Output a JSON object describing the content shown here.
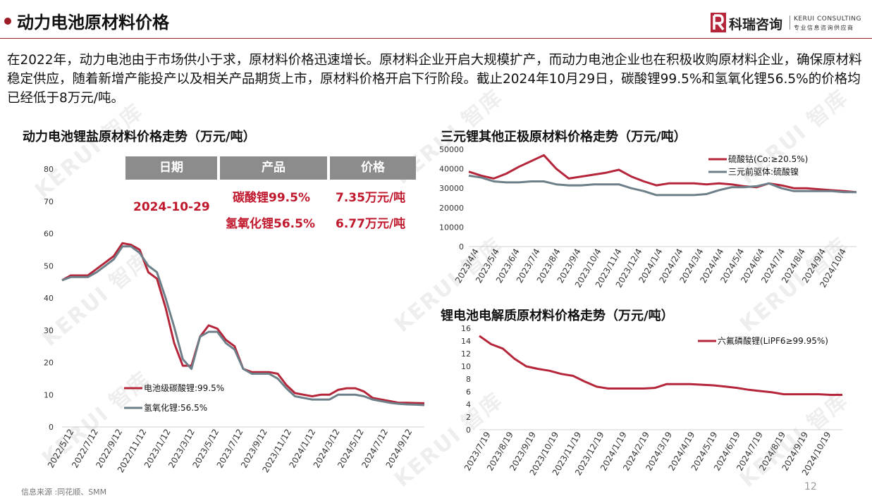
{
  "header": {
    "title": "动力电池原材料价格",
    "logo_cn": "科瑞咨询",
    "logo_en": "KERUI CONSULTING",
    "logo_sub": "专业信息咨询供应商"
  },
  "intro": "在2022年，动力电池由于市场供小于求，原材料价格迅速增长。原材料企业开启大规模扩产，而动力电池企业也在积极收购原材料企业，确保原材料稳定供应，随着新增产能投产以及相关产品期货上市，原材料价格开启下行阶段。截止2024年10月29日，碳酸锂99.5%和氢氧化锂56.5%的价格均已经低于8万元/吨。",
  "table": {
    "headers": [
      "日期",
      "产品",
      "价格"
    ],
    "date": "2024-10-29",
    "rows": [
      {
        "product": "碳酸锂99.5%",
        "price": "7.35万元/吨"
      },
      {
        "product": "氢氧化锂56.5%",
        "price": "6.77万元/吨"
      }
    ]
  },
  "watermark": "KERUI 智库",
  "source": "信息来源 :同花顺、SMM",
  "page_number": "12",
  "chart_data": [
    {
      "type": "line",
      "title": "动力电池锂盐原材料价格走势（万元/吨）",
      "x_ticks": [
        "2022/5/12",
        "2022/7/12",
        "2022/9/12",
        "2022/11/12",
        "2023/1/12",
        "2023/3/12",
        "2023/5/12",
        "2023/7/12",
        "2023/9/12",
        "2023/11/12",
        "2024/1/12",
        "2024/3/12",
        "2024/5/12",
        "2024/7/12",
        "2024/9/12"
      ],
      "ylim": [
        0,
        80
      ],
      "y_ticks": [
        "0",
        "10",
        "20",
        "30",
        "40",
        "50",
        "60",
        "70",
        "80"
      ],
      "legend_position": "bottom-left",
      "series": [
        {
          "name": "电池级碳酸锂:99.5%",
          "color": "#b5263a",
          "values": [
            45.5,
            47,
            47,
            47,
            49,
            51,
            53,
            57,
            56.5,
            55,
            48,
            46,
            37,
            26,
            19,
            19,
            28,
            31.5,
            30.5,
            27,
            25,
            18,
            17,
            17,
            17,
            16.5,
            13,
            10.5,
            10,
            9.5,
            10,
            10,
            11.5,
            12,
            12,
            11,
            9,
            8.5,
            8,
            7.5,
            7.5,
            7.4,
            7.35
          ]
        },
        {
          "name": "氢氧化锂:56.5%",
          "color": "#6d7f88",
          "values": [
            45.5,
            46.5,
            46.5,
            46.5,
            48,
            50,
            52,
            56,
            56,
            54,
            50,
            48,
            40,
            31,
            21,
            18,
            28,
            29.5,
            29.5,
            26,
            24,
            18,
            16.5,
            16.5,
            16.5,
            15,
            12,
            9.5,
            9,
            8.5,
            8.5,
            8.5,
            10,
            10,
            10,
            9.5,
            8.5,
            8,
            7.5,
            7.2,
            7,
            6.9,
            6.77
          ]
        }
      ]
    },
    {
      "type": "line",
      "title": "三元锂其他正极原材料价格走势（万元/吨）",
      "x_ticks": [
        "2023/4/4",
        "2023/5/4",
        "2023/6/4",
        "2023/7/4",
        "2023/8/4",
        "2023/9/4",
        "2023/10/4",
        "2023/11/4",
        "2023/12/4",
        "2024/1/4",
        "2024/2/4",
        "2024/3/4",
        "2024/4/4",
        "2024/5/4",
        "2024/6/4",
        "2024/7/4",
        "2024/8/4",
        "2024/9/4",
        "2024/10/4"
      ],
      "ylim": [
        0,
        50000
      ],
      "y_ticks": [
        "0",
        "10000",
        "20000",
        "30000",
        "40000",
        "50000"
      ],
      "legend_position": "top-right",
      "series": [
        {
          "name": "硫酸钴(Co:≥20.5%)",
          "color": "#b5263a",
          "values": [
            38500,
            36500,
            35000,
            37500,
            41000,
            44000,
            47000,
            40000,
            35000,
            36000,
            37000,
            38000,
            39500,
            36000,
            33500,
            31500,
            32500,
            32500,
            32500,
            32000,
            32500,
            32000,
            31000,
            30500,
            32500,
            31500,
            30000,
            30000,
            29500,
            29000,
            28500,
            28000
          ]
        },
        {
          "name": "三元前驱体:硫酸镍",
          "color": "#6d7f88",
          "values": [
            36500,
            35500,
            33500,
            33000,
            33000,
            33500,
            33500,
            32000,
            31500,
            31500,
            32000,
            32000,
            32000,
            30000,
            28500,
            26500,
            26500,
            26500,
            26500,
            27000,
            29000,
            30500,
            30500,
            31000,
            32500,
            30000,
            28500,
            28500,
            28500,
            28500,
            28000,
            28000
          ]
        }
      ]
    },
    {
      "type": "line",
      "title": "锂电池电解质原材料价格走势（万元/吨）",
      "x_ticks": [
        "2023/7/19",
        "2023/8/19",
        "2023/9/19",
        "2023/10/19",
        "2023/11/19",
        "2023/12/19",
        "2024/1/19",
        "2024/2/19",
        "2024/3/19",
        "2024/4/19",
        "2024/5/19",
        "2024/6/19",
        "2024/7/19",
        "2024/8/19",
        "2024/9/19",
        "2024/10/19"
      ],
      "ylim": [
        0,
        16
      ],
      "y_ticks": [
        "0",
        "2",
        "4",
        "6",
        "8",
        "10",
        "12",
        "14",
        "16"
      ],
      "legend_position": "top-right",
      "series": [
        {
          "name": "六氟磷酸锂(LiPF6≥99.95%)",
          "color": "#b5263a",
          "values": [
            14.8,
            13.5,
            12.8,
            11.2,
            10,
            9.6,
            9.3,
            8.8,
            8.5,
            7.6,
            6.8,
            6.5,
            6.5,
            6.5,
            6.5,
            6.6,
            7.2,
            7.2,
            7.2,
            7.1,
            7,
            6.8,
            6.6,
            6.3,
            6.1,
            5.9,
            5.6,
            5.6,
            5.6,
            5.6,
            5.5,
            5.5
          ]
        }
      ]
    }
  ]
}
